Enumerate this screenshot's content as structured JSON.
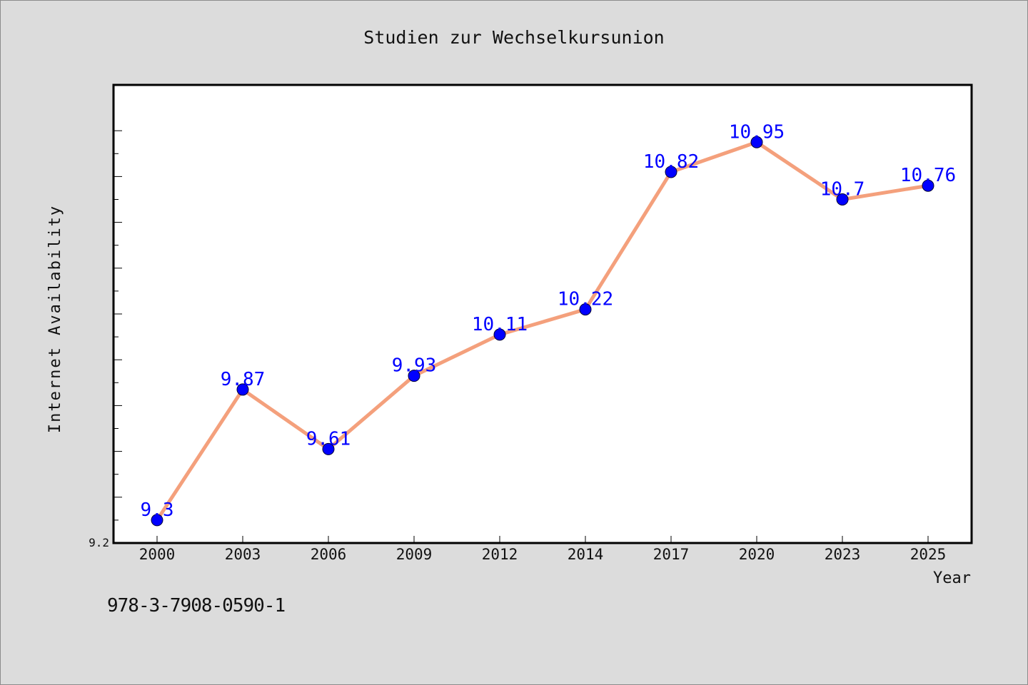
{
  "footer": {
    "isbn": "978-3-7908-0590-1"
  },
  "colors": {
    "line": "#f4a07c",
    "marker": "#0000ff",
    "label": "#0000ff",
    "background": "#dcdcdc",
    "plot": "#ffffff"
  },
  "chart_data": {
    "type": "line",
    "title": "Studien zur Wechselkursunion",
    "xlabel": "Year",
    "ylabel": "Internet Availability",
    "categories": [
      "2000",
      "2003",
      "2006",
      "2009",
      "2012",
      "2014",
      "2017",
      "2020",
      "2023",
      "2025"
    ],
    "series": [
      {
        "values": [
          9.3,
          9.87,
          9.61,
          9.93,
          10.11,
          10.22,
          10.82,
          10.95,
          10.7,
          10.76
        ]
      }
    ],
    "data_labels": [
      "9.3",
      "9.87",
      "9.61",
      "9.93",
      "10.11",
      "10.22",
      "10.82",
      "10.95",
      "10.7",
      "10.76"
    ],
    "ylim": [
      9.2,
      11.2
    ],
    "y_tick_labels": [
      "9.2"
    ],
    "grid": false,
    "legend": "none"
  }
}
